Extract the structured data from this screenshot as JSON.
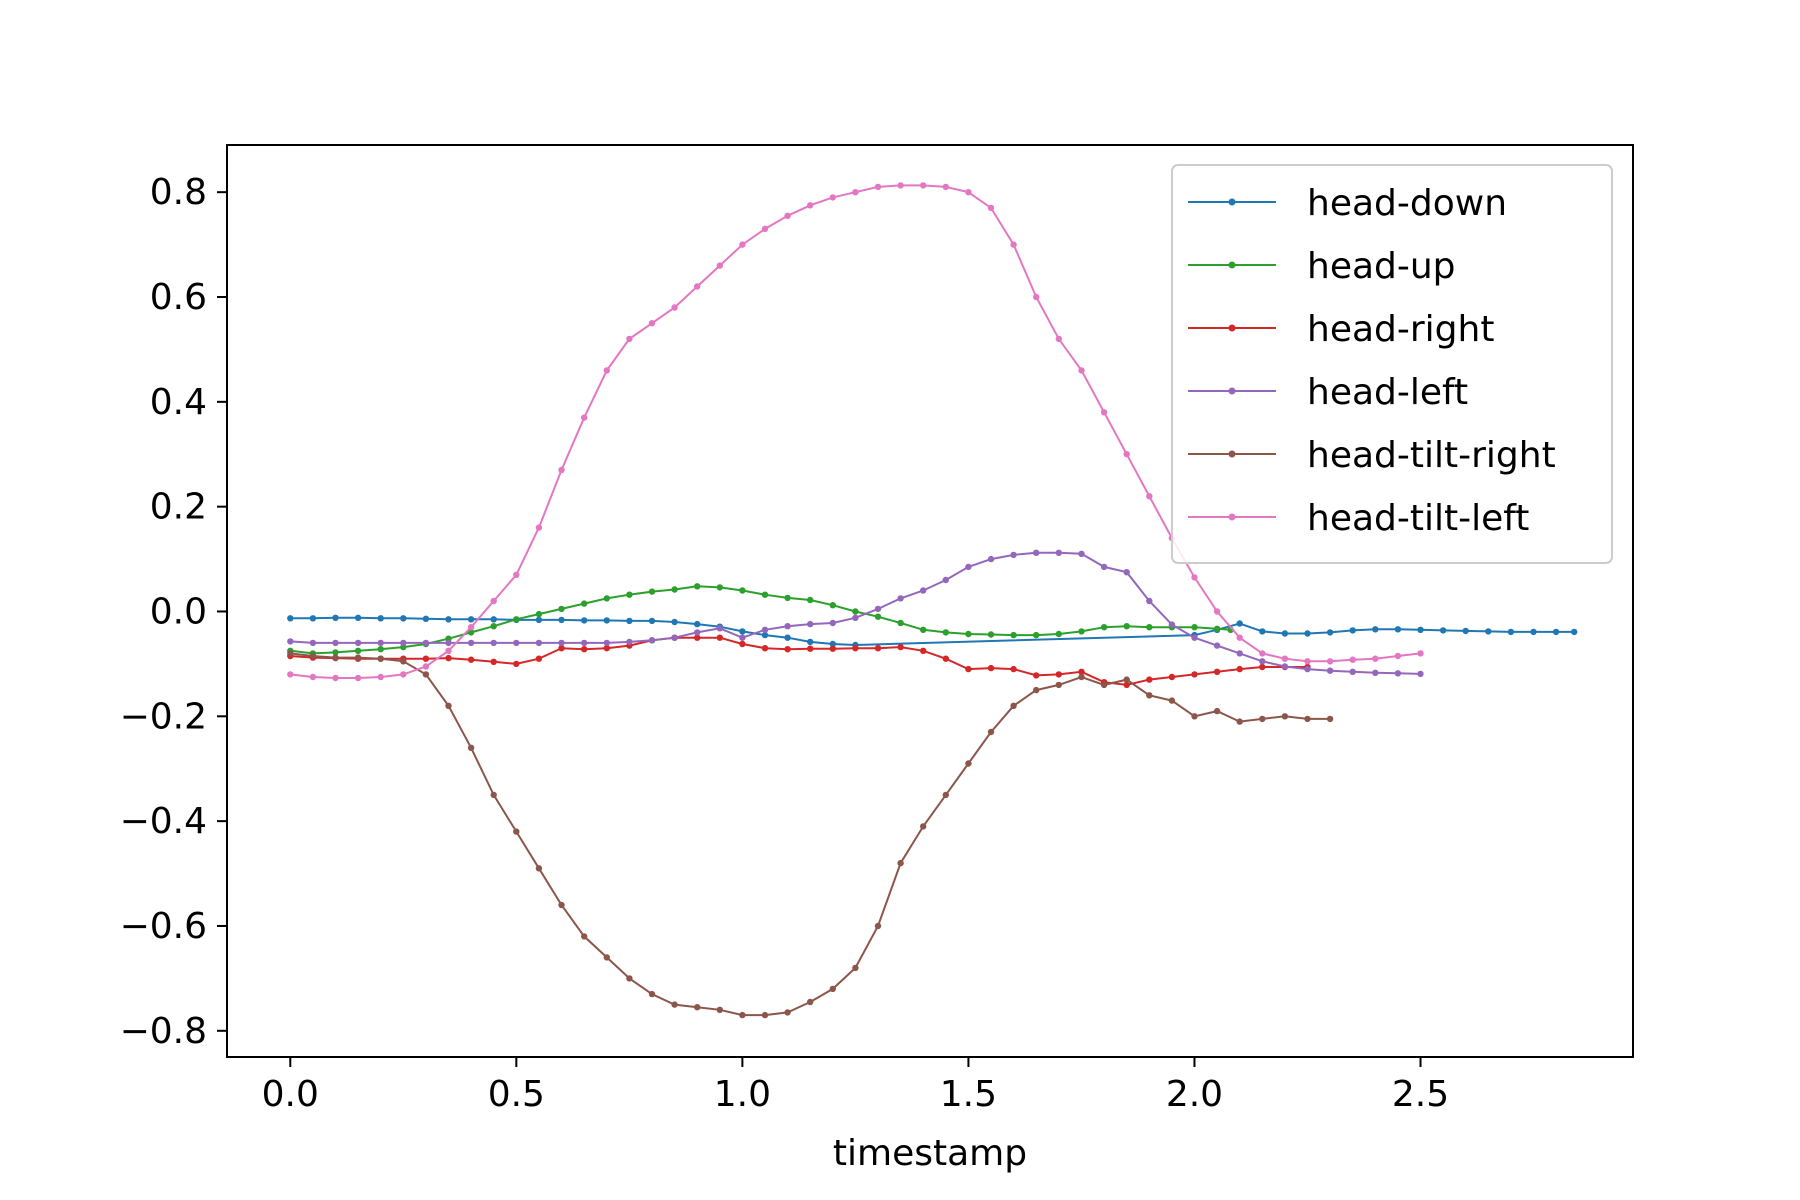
{
  "chart_data": {
    "type": "line",
    "xlabel": "timestamp",
    "ylabel": "",
    "xlim": [
      -0.14,
      2.97
    ],
    "ylim": [
      -0.85,
      0.89
    ],
    "xticks": [
      0.0,
      0.5,
      1.0,
      1.5,
      2.0,
      2.5
    ],
    "xtick_labels": [
      "0.0",
      "0.5",
      "1.0",
      "1.5",
      "2.0",
      "2.5"
    ],
    "yticks": [
      -0.8,
      -0.6,
      -0.4,
      -0.2,
      0.0,
      0.2,
      0.4,
      0.6,
      0.8
    ],
    "ytick_labels": [
      "−0.8",
      "−0.6",
      "−0.4",
      "−0.2",
      "0.0",
      "0.2",
      "0.4",
      "0.6",
      "0.8"
    ],
    "grid": false,
    "legend_position": "top-right",
    "series": [
      {
        "name": "head-down",
        "color": "#1f77b4",
        "x": [
          0.0,
          0.05,
          0.1,
          0.15,
          0.2,
          0.25,
          0.3,
          0.35,
          0.4,
          0.45,
          0.5,
          0.55,
          0.6,
          0.65,
          0.7,
          0.75,
          0.8,
          0.85,
          0.9,
          0.95,
          1.0,
          1.05,
          1.1,
          1.15,
          1.2,
          1.25,
          2.0,
          2.05,
          2.1,
          2.15,
          2.2,
          2.25,
          2.3,
          2.35,
          2.4,
          2.45,
          2.5,
          2.55,
          2.6,
          2.65,
          2.7,
          2.75,
          2.8,
          2.84
        ],
        "y": [
          -0.013,
          -0.013,
          -0.012,
          -0.012,
          -0.013,
          -0.013,
          -0.014,
          -0.015,
          -0.015,
          -0.015,
          -0.016,
          -0.016,
          -0.016,
          -0.017,
          -0.017,
          -0.018,
          -0.018,
          -0.02,
          -0.024,
          -0.029,
          -0.038,
          -0.045,
          -0.05,
          -0.058,
          -0.062,
          -0.064,
          -0.045,
          -0.035,
          -0.023,
          -0.038,
          -0.042,
          -0.042,
          -0.04,
          -0.036,
          -0.034,
          -0.034,
          -0.035,
          -0.036,
          -0.037,
          -0.038,
          -0.039,
          -0.039,
          -0.039,
          -0.039
        ]
      },
      {
        "name": "head-up",
        "color": "#2ca02c",
        "x": [
          0.0,
          0.05,
          0.1,
          0.15,
          0.2,
          0.25,
          0.3,
          0.35,
          0.4,
          0.45,
          0.5,
          0.55,
          0.6,
          0.65,
          0.7,
          0.75,
          0.8,
          0.85,
          0.9,
          0.95,
          1.0,
          1.05,
          1.1,
          1.15,
          1.2,
          1.25,
          1.3,
          1.35,
          1.4,
          1.45,
          1.5,
          1.55,
          1.6,
          1.65,
          1.7,
          1.75,
          1.8,
          1.85,
          1.9,
          1.95,
          2.0,
          2.05,
          2.08
        ],
        "y": [
          -0.075,
          -0.08,
          -0.078,
          -0.075,
          -0.072,
          -0.068,
          -0.062,
          -0.052,
          -0.04,
          -0.028,
          -0.015,
          -0.005,
          0.005,
          0.015,
          0.025,
          0.032,
          0.038,
          0.042,
          0.048,
          0.046,
          0.04,
          0.032,
          0.026,
          0.022,
          0.012,
          0.0,
          -0.01,
          -0.022,
          -0.035,
          -0.04,
          -0.043,
          -0.044,
          -0.045,
          -0.045,
          -0.043,
          -0.038,
          -0.03,
          -0.028,
          -0.03,
          -0.03,
          -0.03,
          -0.033,
          -0.035
        ]
      },
      {
        "name": "head-right",
        "color": "#d62728",
        "x": [
          0.0,
          0.05,
          0.1,
          0.15,
          0.2,
          0.25,
          0.3,
          0.35,
          0.4,
          0.45,
          0.5,
          0.55,
          0.6,
          0.65,
          0.7,
          0.75,
          0.8,
          0.85,
          0.9,
          0.95,
          1.0,
          1.05,
          1.1,
          1.15,
          1.2,
          1.25,
          1.3,
          1.35,
          1.4,
          1.45,
          1.5,
          1.55,
          1.6,
          1.65,
          1.7,
          1.75,
          1.8,
          1.85,
          1.9,
          1.95,
          2.0,
          2.05,
          2.1,
          2.15,
          2.2,
          2.25
        ],
        "y": [
          -0.085,
          -0.088,
          -0.089,
          -0.09,
          -0.09,
          -0.09,
          -0.09,
          -0.089,
          -0.092,
          -0.096,
          -0.1,
          -0.09,
          -0.07,
          -0.072,
          -0.07,
          -0.065,
          -0.055,
          -0.05,
          -0.05,
          -0.05,
          -0.062,
          -0.07,
          -0.072,
          -0.071,
          -0.071,
          -0.07,
          -0.07,
          -0.068,
          -0.075,
          -0.09,
          -0.11,
          -0.108,
          -0.11,
          -0.122,
          -0.12,
          -0.115,
          -0.135,
          -0.14,
          -0.13,
          -0.125,
          -0.12,
          -0.115,
          -0.11,
          -0.106,
          -0.106,
          -0.106
        ]
      },
      {
        "name": "head-left",
        "color": "#9467bd",
        "x": [
          0.0,
          0.05,
          0.1,
          0.15,
          0.2,
          0.25,
          0.3,
          0.35,
          0.4,
          0.45,
          0.5,
          0.55,
          0.6,
          0.65,
          0.7,
          0.75,
          0.8,
          0.85,
          0.9,
          0.95,
          1.0,
          1.05,
          1.1,
          1.15,
          1.2,
          1.25,
          1.3,
          1.35,
          1.4,
          1.45,
          1.5,
          1.55,
          1.6,
          1.65,
          1.7,
          1.75,
          1.8,
          1.85,
          1.9,
          1.95,
          2.0,
          2.05,
          2.1,
          2.15,
          2.2,
          2.25,
          2.3,
          2.35,
          2.4,
          2.45,
          2.5
        ],
        "y": [
          -0.057,
          -0.06,
          -0.06,
          -0.06,
          -0.06,
          -0.06,
          -0.06,
          -0.06,
          -0.06,
          -0.06,
          -0.06,
          -0.06,
          -0.06,
          -0.06,
          -0.06,
          -0.058,
          -0.055,
          -0.05,
          -0.04,
          -0.032,
          -0.05,
          -0.035,
          -0.028,
          -0.024,
          -0.022,
          -0.012,
          0.005,
          0.025,
          0.04,
          0.06,
          0.085,
          0.1,
          0.108,
          0.112,
          0.112,
          0.11,
          0.085,
          0.075,
          0.02,
          -0.025,
          -0.05,
          -0.065,
          -0.08,
          -0.095,
          -0.105,
          -0.11,
          -0.113,
          -0.115,
          -0.117,
          -0.118,
          -0.119
        ]
      },
      {
        "name": "head-tilt-right",
        "color": "#8c564b",
        "x": [
          0.0,
          0.05,
          0.1,
          0.15,
          0.2,
          0.25,
          0.3,
          0.35,
          0.4,
          0.45,
          0.5,
          0.55,
          0.6,
          0.65,
          0.7,
          0.75,
          0.8,
          0.85,
          0.9,
          0.95,
          1.0,
          1.05,
          1.1,
          1.15,
          1.2,
          1.25,
          1.3,
          1.35,
          1.4,
          1.45,
          1.5,
          1.55,
          1.6,
          1.65,
          1.7,
          1.75,
          1.8,
          1.85,
          1.9,
          1.95,
          2.0,
          2.05,
          2.1,
          2.15,
          2.2,
          2.25,
          2.3
        ],
        "y": [
          -0.08,
          -0.085,
          -0.088,
          -0.088,
          -0.09,
          -0.095,
          -0.12,
          -0.18,
          -0.26,
          -0.35,
          -0.42,
          -0.49,
          -0.56,
          -0.62,
          -0.66,
          -0.7,
          -0.73,
          -0.75,
          -0.755,
          -0.76,
          -0.77,
          -0.77,
          -0.765,
          -0.745,
          -0.72,
          -0.68,
          -0.6,
          -0.48,
          -0.41,
          -0.35,
          -0.29,
          -0.23,
          -0.18,
          -0.15,
          -0.14,
          -0.125,
          -0.14,
          -0.13,
          -0.16,
          -0.17,
          -0.2,
          -0.19,
          -0.21,
          -0.205,
          -0.2,
          -0.205,
          -0.205
        ]
      },
      {
        "name": "head-tilt-left",
        "color": "#e377c2",
        "x": [
          0.0,
          0.05,
          0.1,
          0.15,
          0.2,
          0.25,
          0.3,
          0.35,
          0.4,
          0.45,
          0.5,
          0.55,
          0.6,
          0.65,
          0.7,
          0.75,
          0.8,
          0.85,
          0.9,
          0.95,
          1.0,
          1.05,
          1.1,
          1.15,
          1.2,
          1.25,
          1.3,
          1.35,
          1.4,
          1.45,
          1.5,
          1.55,
          1.6,
          1.65,
          1.7,
          1.75,
          1.8,
          1.85,
          1.9,
          1.95,
          2.0,
          2.05,
          2.1,
          2.15,
          2.2,
          2.25,
          2.3,
          2.35,
          2.4,
          2.45,
          2.5
        ],
        "y": [
          -0.12,
          -0.125,
          -0.127,
          -0.127,
          -0.125,
          -0.12,
          -0.105,
          -0.075,
          -0.03,
          0.02,
          0.07,
          0.16,
          0.27,
          0.37,
          0.46,
          0.52,
          0.55,
          0.58,
          0.62,
          0.66,
          0.7,
          0.73,
          0.755,
          0.775,
          0.79,
          0.8,
          0.81,
          0.813,
          0.813,
          0.81,
          0.8,
          0.77,
          0.7,
          0.6,
          0.52,
          0.46,
          0.38,
          0.3,
          0.22,
          0.14,
          0.065,
          0.0,
          -0.05,
          -0.08,
          -0.09,
          -0.095,
          -0.095,
          -0.092,
          -0.09,
          -0.085,
          -0.08
        ]
      }
    ]
  }
}
